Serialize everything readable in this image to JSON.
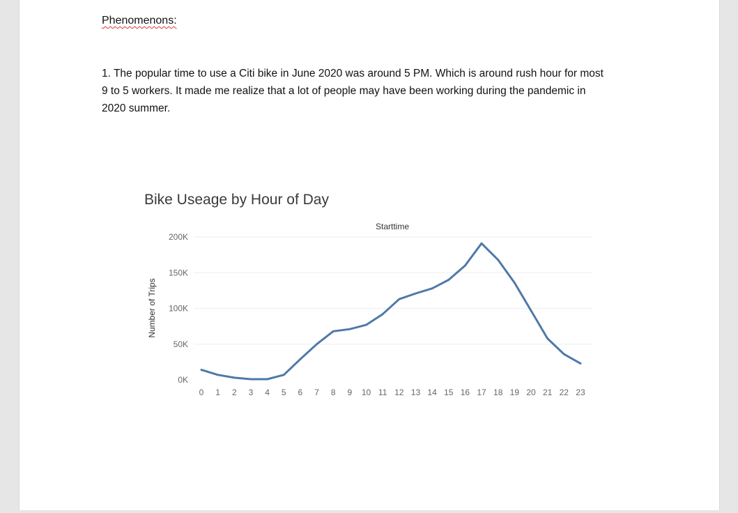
{
  "document": {
    "heading": "Phenomenons:",
    "paragraph": "1. The popular time to use a Citi bike in June 2020 was around 5 PM. Which is around rush hour for most 9 to 5 workers. It made me realize that a lot of people may have been working during the pandemic in 2020 summer.",
    "paragraph_lines": [
      "1. The popular time to use a Citi bike in June 2020 was around 5 PM. Which is around rush hour for most",
      "9 to 5 workers. It made me realize that a lot of people may have been working during the pandemic in",
      "2020 summer."
    ]
  },
  "chart_data": {
    "type": "line",
    "title": "Bike Useage by Hour of Day",
    "header_label": "Starttime",
    "ylabel": "Number of Trips",
    "xlabel": "",
    "ylim": [
      0,
      200000
    ],
    "y_ticks": [
      {
        "value": 0,
        "label": "0K"
      },
      {
        "value": 50000,
        "label": "50K"
      },
      {
        "value": 100000,
        "label": "100K"
      },
      {
        "value": 150000,
        "label": "150K"
      },
      {
        "value": 200000,
        "label": "200K"
      }
    ],
    "categories": [
      "0",
      "1",
      "2",
      "3",
      "4",
      "5",
      "6",
      "7",
      "8",
      "9",
      "10",
      "11",
      "12",
      "13",
      "14",
      "15",
      "16",
      "17",
      "18",
      "19",
      "20",
      "21",
      "22",
      "23"
    ],
    "series": [
      {
        "color": "#4e79a7",
        "values": [
          14000,
          7000,
          3000,
          1000,
          1000,
          7000,
          29000,
          50000,
          68000,
          71000,
          77000,
          92000,
          113000,
          121000,
          128000,
          140000,
          160000,
          191000,
          168000,
          136000,
          97000,
          58000,
          36000,
          23000
        ]
      }
    ],
    "grid": true,
    "legend": "none"
  }
}
